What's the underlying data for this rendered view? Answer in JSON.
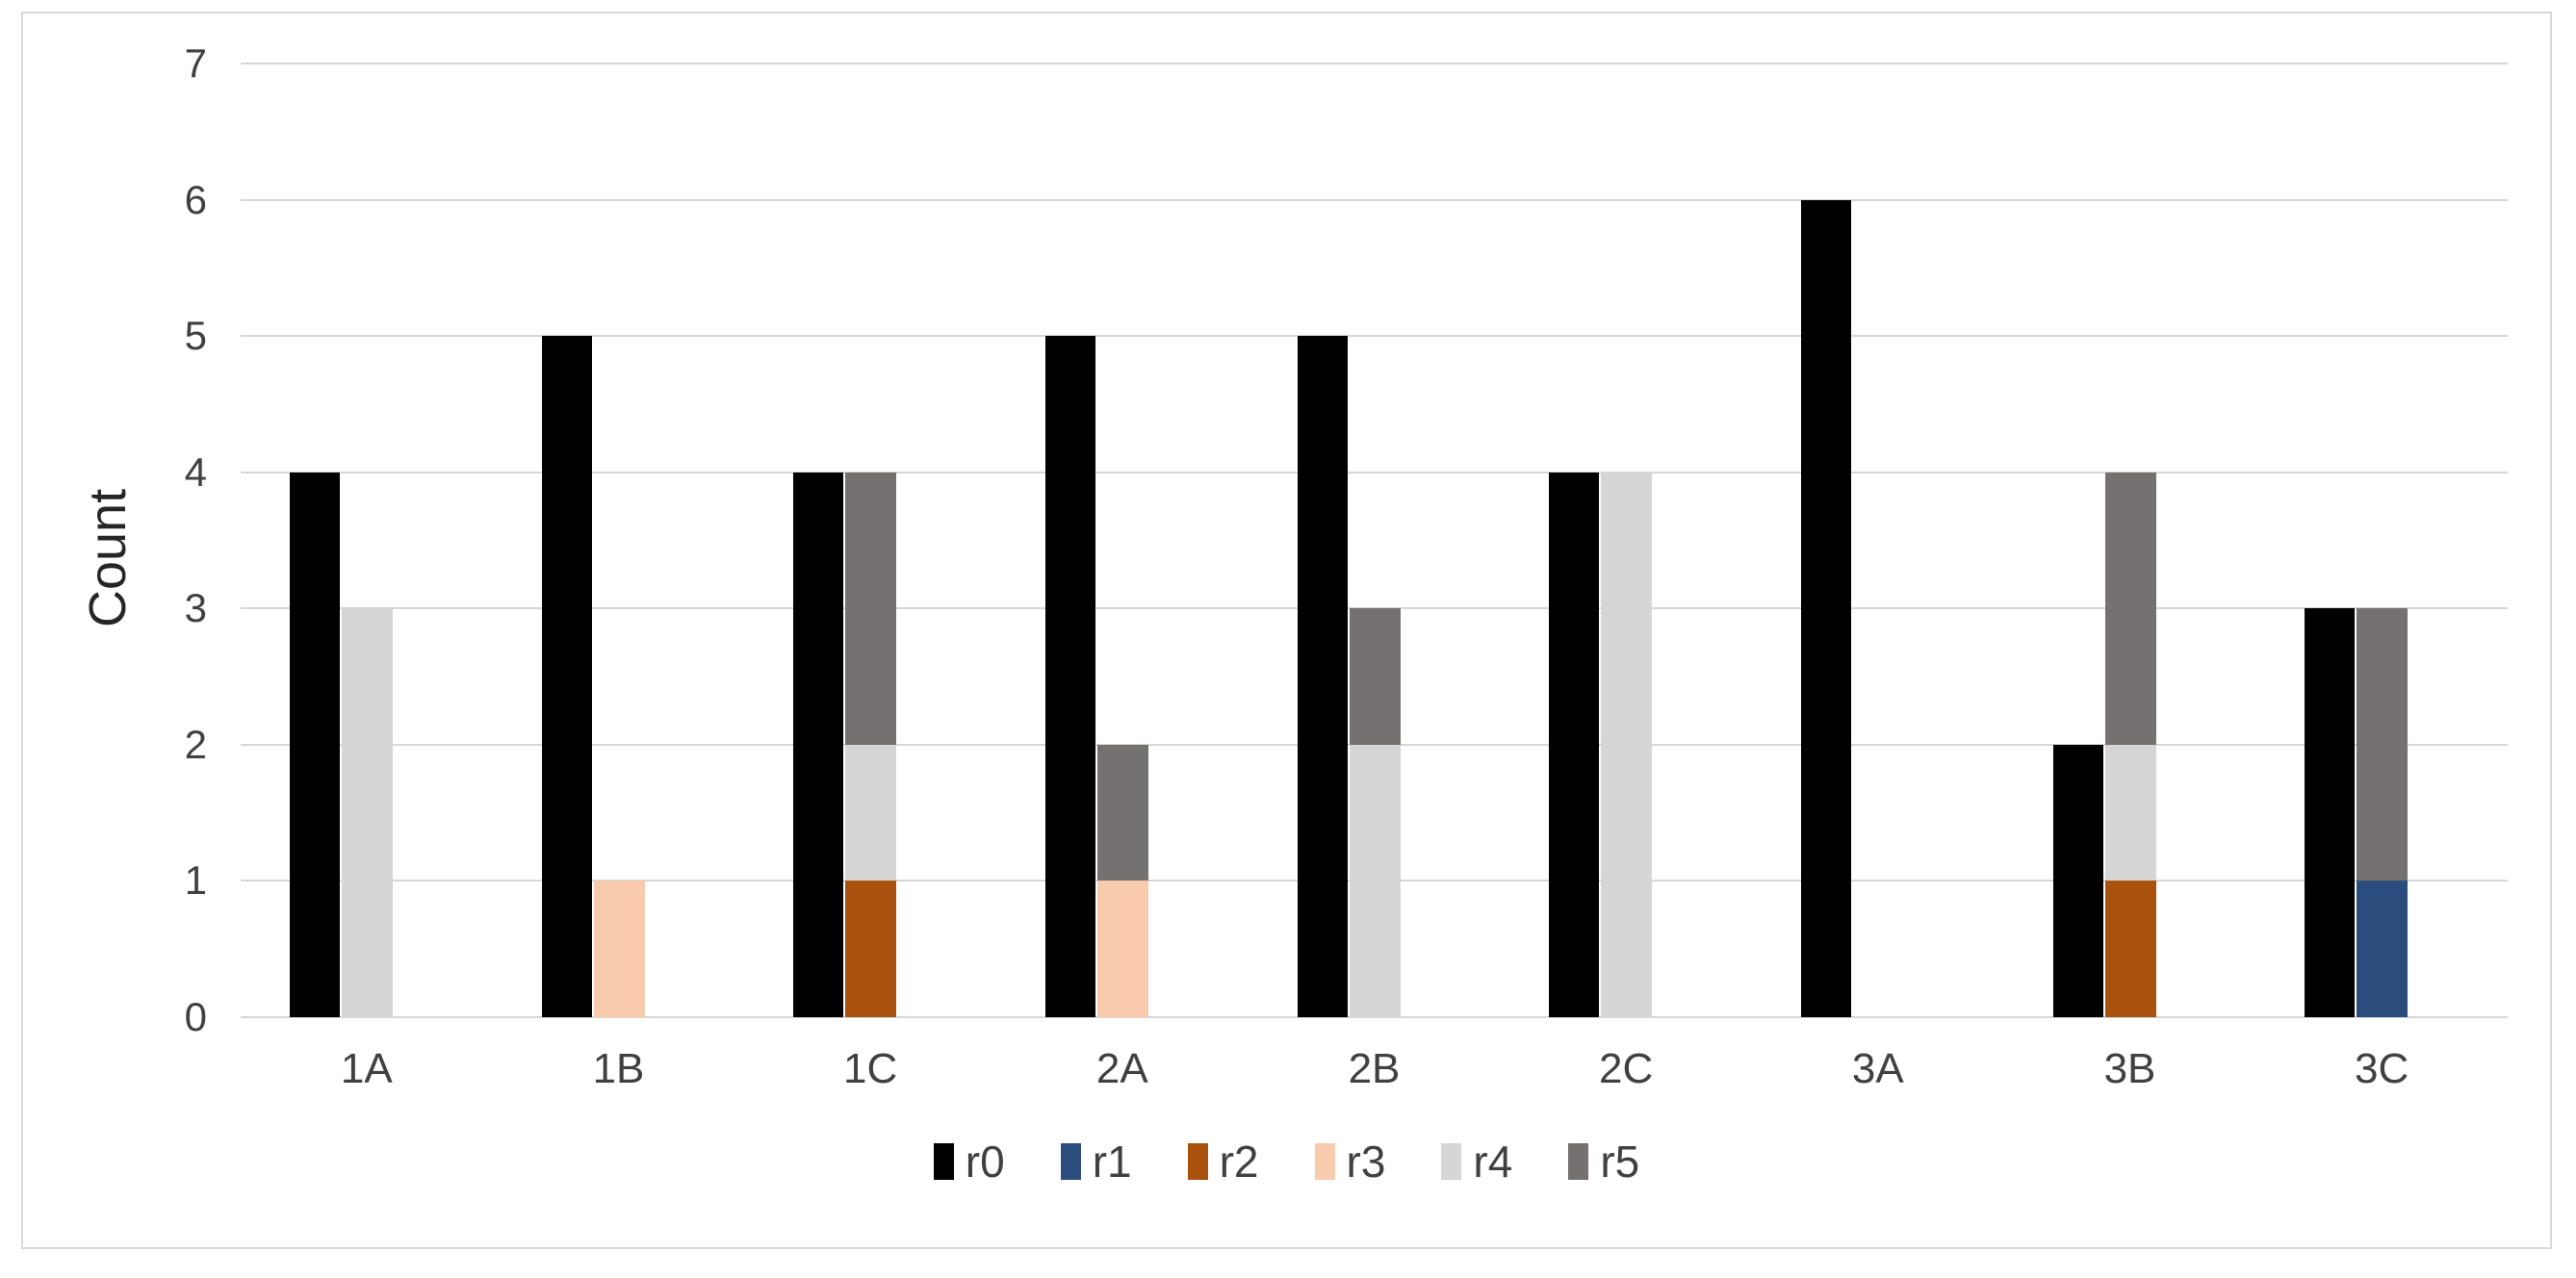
{
  "figure": {
    "background": "#ffffff",
    "frame_border_color": "#d9d9d9"
  },
  "chart_data": {
    "type": "bar",
    "subtype": "clustered-plus-stacked",
    "title": "",
    "xlabel": "",
    "ylabel": "Count",
    "ylim": [
      0,
      7
    ],
    "yticks": [
      0,
      1,
      2,
      3,
      4,
      5,
      6,
      7
    ],
    "grid": true,
    "gridline_color": "#d6d6d6",
    "axis_text_color": "#404040",
    "categories": [
      "1A",
      "1B",
      "1C",
      "2A",
      "2B",
      "2C",
      "3A",
      "3B",
      "3C"
    ],
    "series": [
      {
        "name": "r0",
        "color": "#000000",
        "stack": "left",
        "values": [
          4,
          5,
          4,
          5,
          5,
          4,
          6,
          2,
          3
        ]
      },
      {
        "name": "r1",
        "color": "#2b4d7e",
        "stack": "right",
        "values": [
          0,
          0,
          0,
          0,
          0,
          0,
          0,
          0,
          1
        ]
      },
      {
        "name": "r2",
        "color": "#a8520e",
        "stack": "right",
        "values": [
          0,
          0,
          1,
          0,
          0,
          0,
          0,
          1,
          0
        ]
      },
      {
        "name": "r3",
        "color": "#f8cbad",
        "stack": "right",
        "values": [
          0,
          1,
          0,
          1,
          0,
          0,
          0,
          0,
          0
        ]
      },
      {
        "name": "r4",
        "color": "#d6d6d6",
        "stack": "right",
        "values": [
          3,
          0,
          1,
          0,
          2,
          4,
          0,
          1,
          0
        ]
      },
      {
        "name": "r5",
        "color": "#767171",
        "stack": "right",
        "values": [
          0,
          0,
          2,
          1,
          1,
          0,
          0,
          2,
          2
        ]
      }
    ],
    "legend": {
      "position": "bottom",
      "entries": [
        "r0",
        "r1",
        "r2",
        "r3",
        "r4",
        "r5"
      ]
    }
  }
}
